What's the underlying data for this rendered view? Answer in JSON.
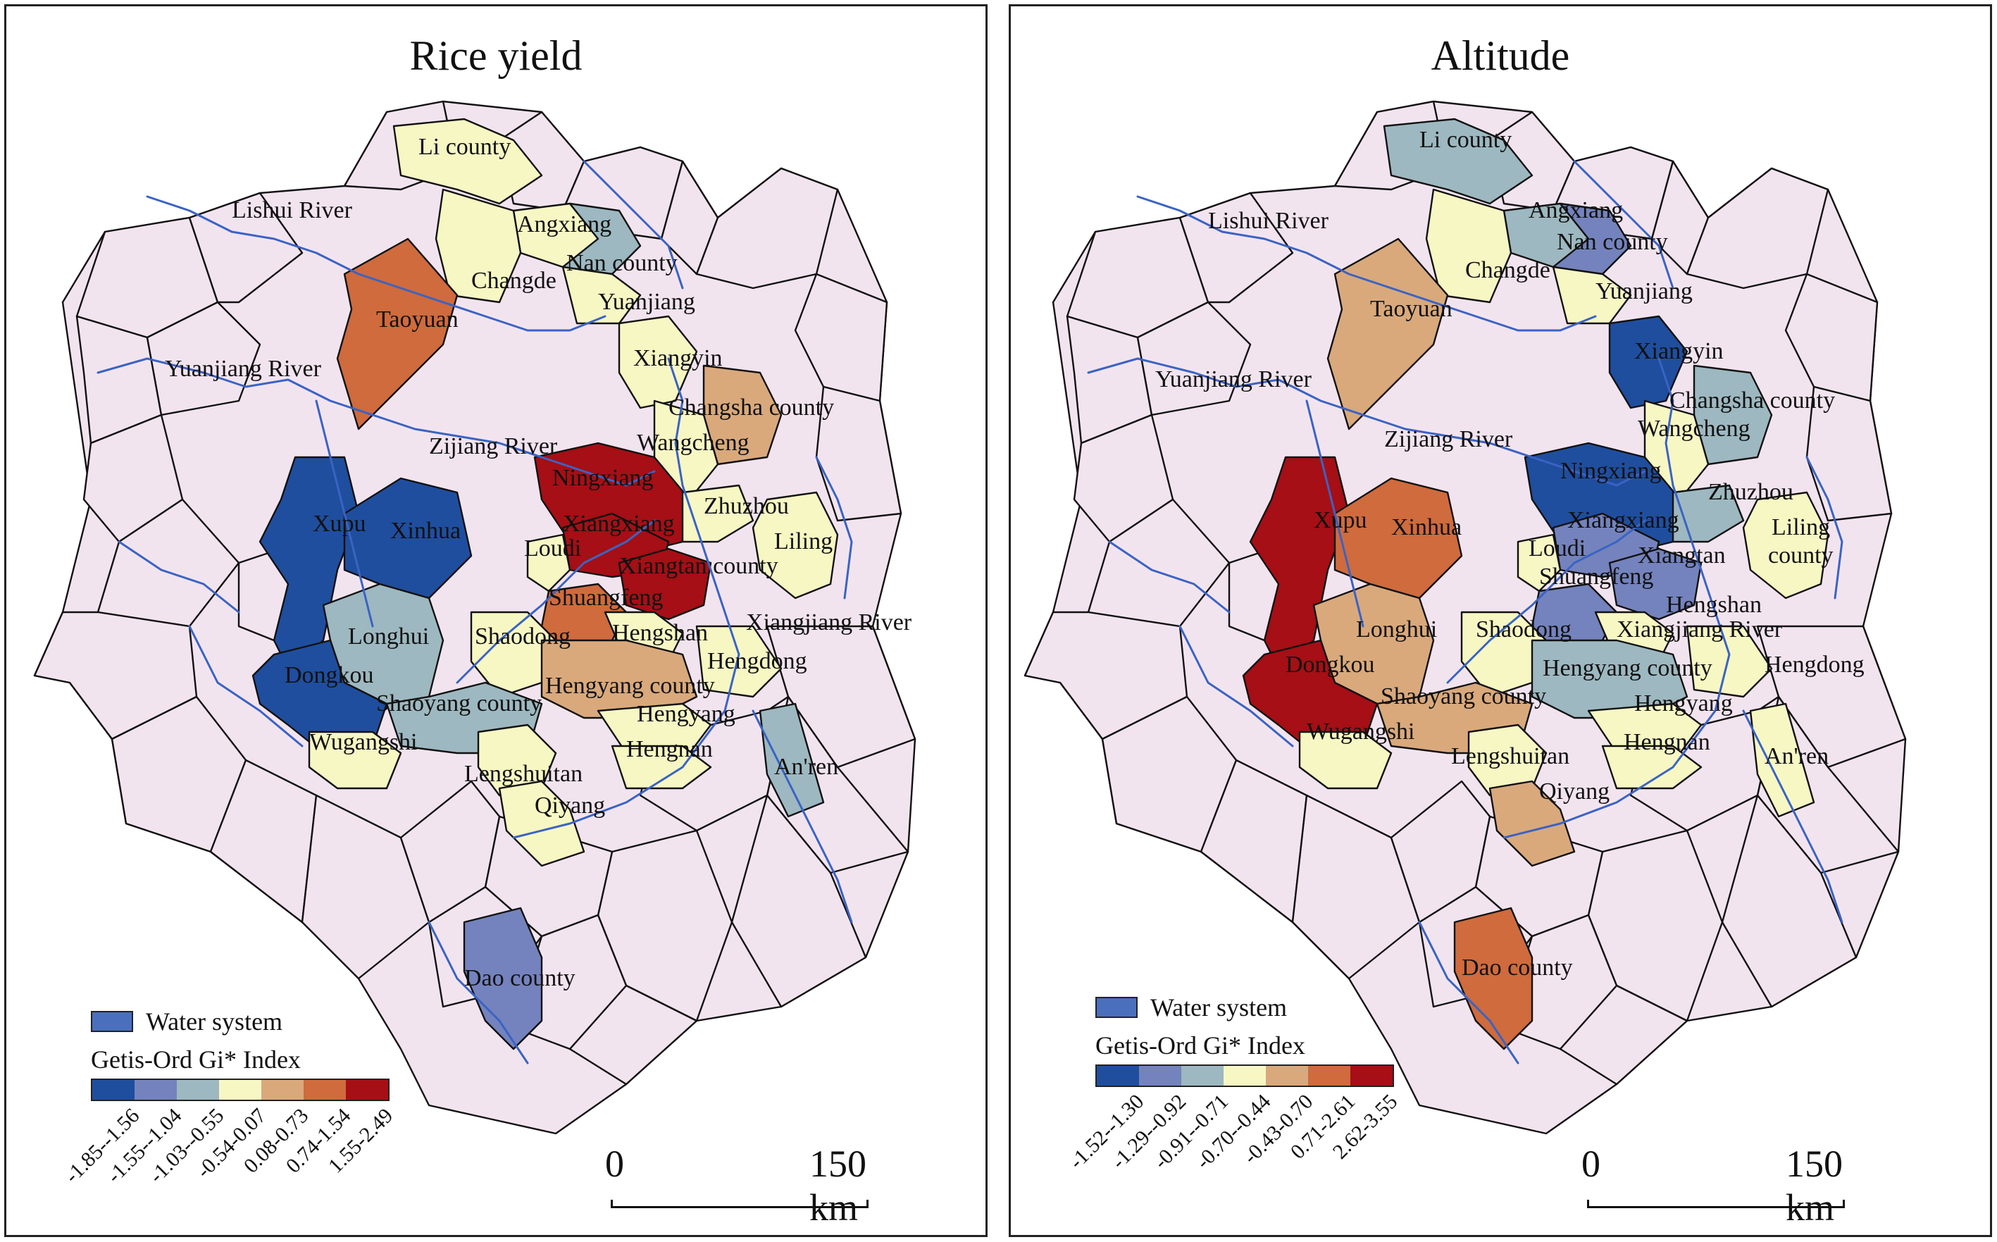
{
  "panels": [
    {
      "id": "rice",
      "title": "Rice yield",
      "legend": {
        "water_label": "Water system",
        "index_title": "Getis-Ord Gi* Index",
        "classes": [
          "-1.85--1.56",
          "-1.55--1.04",
          "-1.03--0.55",
          "-0.54-0.07",
          "0.08-0.73",
          "0.74-1.54",
          "1.55-2.49"
        ]
      },
      "scale": {
        "zero": "0",
        "distance": "150 km"
      },
      "labels": [
        "Li county",
        "Lishui River",
        "Angxiang",
        "Nan county",
        "Changde",
        "Yuanjiang",
        "Taoyuan",
        "Yuanjiang River",
        "Xiangyin",
        "Changsha county",
        "Zijiang River",
        "Wangcheng",
        "Ningxiang",
        "Zhuzhou",
        "Xupu",
        "Xinhua",
        "Xiangxiang",
        "Liling",
        "Loudi",
        "Xiangtan county",
        "Shuangfeng",
        "Xiangjiang River",
        "Hengshan",
        "Longhui",
        "Shaodong",
        "Hengdong",
        "Dongkou",
        "Hengyang county",
        "Shaoyang county",
        "Hengyang",
        "Wugangshi",
        "Hengnan",
        "An'ren",
        "Lengshuitan",
        "Qiyang",
        "Dao county"
      ]
    },
    {
      "id": "altitude",
      "title": "Altitude",
      "legend": {
        "water_label": "Water system",
        "index_title": "Getis-Ord Gi* Index",
        "classes": [
          "-1.52--1.30",
          "-1.29--0.92",
          "-0.91--0.71",
          "-0.70--0.44",
          "-0.43-0.70",
          "0.71-2.61",
          "2.62-3.55"
        ]
      },
      "scale": {
        "zero": "0",
        "distance": "150 km"
      },
      "labels": [
        "Li county",
        "Lishui River",
        "Angxiang",
        "Nan county",
        "Changde",
        "Yuanjiang",
        "Taoyuan",
        "Xiangyin",
        "Yuanjiang River",
        "Changsha county",
        "Wangcheng",
        "Zijiang River",
        "Ningxiang",
        "Zhuzhou",
        "Xupu",
        "Xinhua",
        "Xiangxiang",
        "Liling",
        "Loudi",
        "Shuangfeng",
        "Xiangtan",
        "county",
        "Hengshan",
        "Longhui",
        "Shaodong",
        "Xiangjiang River",
        "Dongkou",
        "Hengyang county",
        "Hengdong",
        "Shaoyang county",
        "Hengyang",
        "Wugangshi",
        "Lengshuitan",
        "Hengnan",
        "An'ren",
        "Qiyang",
        "Dao county"
      ]
    }
  ],
  "colors": {
    "classes": [
      "#1f4e9e",
      "#7483bd",
      "#9db8c0",
      "#f7f7c4",
      "#d9a97c",
      "#cf6b3d",
      "#a50f15"
    ],
    "background_county": "#f2e4ef",
    "river": "#3a63c4",
    "water_swatch": "#4a6fbd"
  },
  "map_data": {
    "rice": {
      "Li county": 3,
      "Angxiang": 3,
      "Nan county": 2,
      "Changde": 3,
      "Yuanjiang": 3,
      "Taoyuan": 5,
      "Xiangyin": 3,
      "Changsha county": 4,
      "Wangcheng": 3,
      "Ningxiang": 6,
      "Zhuzhou": 3,
      "Xupu": 0,
      "Xinhua": 0,
      "Xiangxiang": 6,
      "Liling": 3,
      "Loudi": 3,
      "Xiangtan county": 6,
      "Shuangfeng": 5,
      "Hengshan": 3,
      "Longhui": 2,
      "Shaodong": 3,
      "Hengdong": 3,
      "Dongkou": 0,
      "Hengyang county": 4,
      "Shaoyang county": 2,
      "Hengyang": 3,
      "Wugangshi": 3,
      "Hengnan": 3,
      "An'ren": 2,
      "Lengshuitan": 3,
      "Qiyang": 3,
      "Dao county": 1
    },
    "altitude": {
      "Li county": 2,
      "Angxiang": 2,
      "Nan county": 1,
      "Changde": 3,
      "Yuanjiang": 3,
      "Taoyuan": 4,
      "Xiangyin": 0,
      "Changsha county": 2,
      "Wangcheng": 3,
      "Ningxiang": 0,
      "Zhuzhou": 2,
      "Xupu": 6,
      "Xinhua": 5,
      "Xiangxiang": 1,
      "Liling": 3,
      "Loudi": 3,
      "Xiangtan county": 1,
      "Shuangfeng": 1,
      "Hengshan": 3,
      "Longhui": 4,
      "Shaodong": 3,
      "Hengdong": 3,
      "Dongkou": 6,
      "Hengyang county": 2,
      "Shaoyang county": 4,
      "Hengyang": 3,
      "Wugangshi": 3,
      "Hengnan": 3,
      "An'ren": 3,
      "Lengshuitan": 3,
      "Qiyang": 4,
      "Dao county": 5
    }
  }
}
